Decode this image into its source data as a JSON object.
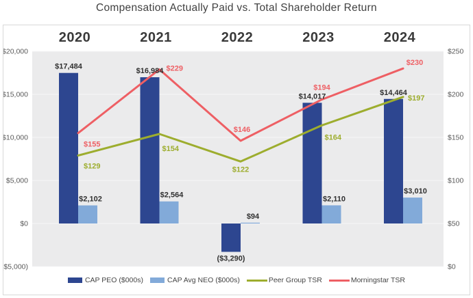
{
  "title": "Compensation Actually Paid vs. Total Shareholder Return",
  "colors": {
    "plot_bg": "#ebebec",
    "grid": "#f7f7f8",
    "card_border": "#d8d8d8",
    "axis_text": "#595959",
    "bar_label_text": "#303030",
    "year_text": "#3a3a3a"
  },
  "chart_data": {
    "type": "combo-bar-line",
    "categories": [
      "2020",
      "2021",
      "2022",
      "2023",
      "2024"
    ],
    "series": [
      {
        "name": "CAP PEO ($000s)",
        "type": "bar",
        "axis": "left",
        "color": "#2d4690",
        "values": [
          17484,
          16984,
          -3290,
          14017,
          14464
        ],
        "labels": [
          "$17,484",
          "$16,984",
          "($3,290)",
          "$14,017",
          "$14,464"
        ]
      },
      {
        "name": "CAP Avg NEO ($000s)",
        "type": "bar",
        "axis": "left",
        "color": "#82aad9",
        "values": [
          2102,
          2564,
          94,
          2110,
          3010
        ],
        "labels": [
          "$2,102",
          "$2,564",
          "$94",
          "$2,110",
          "$3,010"
        ]
      },
      {
        "name": "Peer Group TSR",
        "type": "line",
        "axis": "right",
        "color": "#9dad2e",
        "values": [
          129,
          154,
          122,
          164,
          197
        ],
        "labels": [
          "$129",
          "$154",
          "$122",
          "$164",
          "$197"
        ]
      },
      {
        "name": "Morningstar TSR",
        "type": "line",
        "axis": "right",
        "color": "#ee5f64",
        "values": [
          155,
          229,
          146,
          194,
          230
        ],
        "labels": [
          "$155",
          "$229",
          "$146",
          "$194",
          "$230"
        ]
      }
    ],
    "left_axis": {
      "title": "",
      "min": -5000,
      "max": 20000,
      "tick_step": 5000,
      "ticks": [
        "$20,000",
        "$15,000",
        "$10,000",
        "$5,000",
        "$0",
        "($5,000)"
      ]
    },
    "right_axis": {
      "title": "",
      "min": 0,
      "max": 250,
      "tick_step": 50,
      "ticks": [
        "$250",
        "$200",
        "$150",
        "$100",
        "$50",
        "$0"
      ]
    },
    "grid": true,
    "legend_position": "bottom"
  }
}
